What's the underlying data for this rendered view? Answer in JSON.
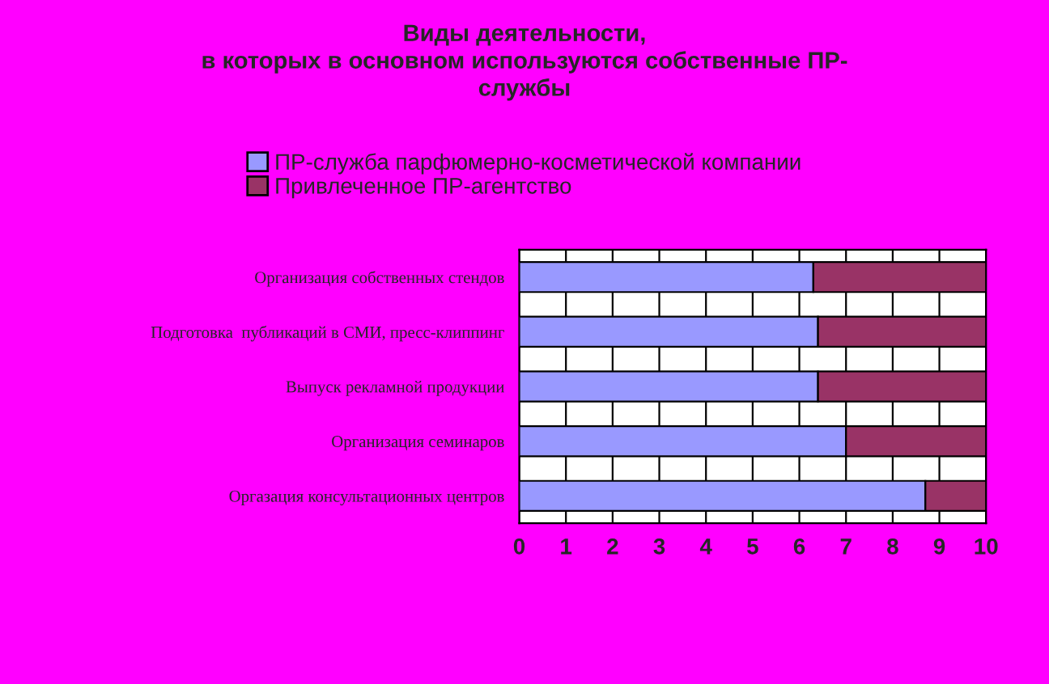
{
  "chart_data": {
    "type": "bar",
    "orientation": "horizontal",
    "stacked": true,
    "title": "Виды деятельности,\nв которых в основном используются собственные ПР-\nслужбы",
    "categories": [
      "Организация собственных стендов",
      "Подготовка  публикаций в СМИ, пресс-клиппинг",
      "Выпуск рекламной продукции",
      "Организация семинаров",
      "Оргазация консультационных центров"
    ],
    "series": [
      {
        "name": "ПР-служба парфюмерно-косметической компании",
        "color": "#9999ff",
        "values": [
          6.3,
          6.4,
          6.4,
          7.0,
          8.7
        ]
      },
      {
        "name": "Привлеченное ПР-агентство",
        "color": "#993366",
        "values": [
          3.7,
          3.6,
          3.6,
          3.0,
          1.3
        ]
      }
    ],
    "xlim": [
      0,
      10
    ],
    "xticks": [
      0,
      1,
      2,
      3,
      4,
      5,
      6,
      7,
      8,
      9,
      10
    ],
    "grid": "x",
    "legend": "top"
  }
}
